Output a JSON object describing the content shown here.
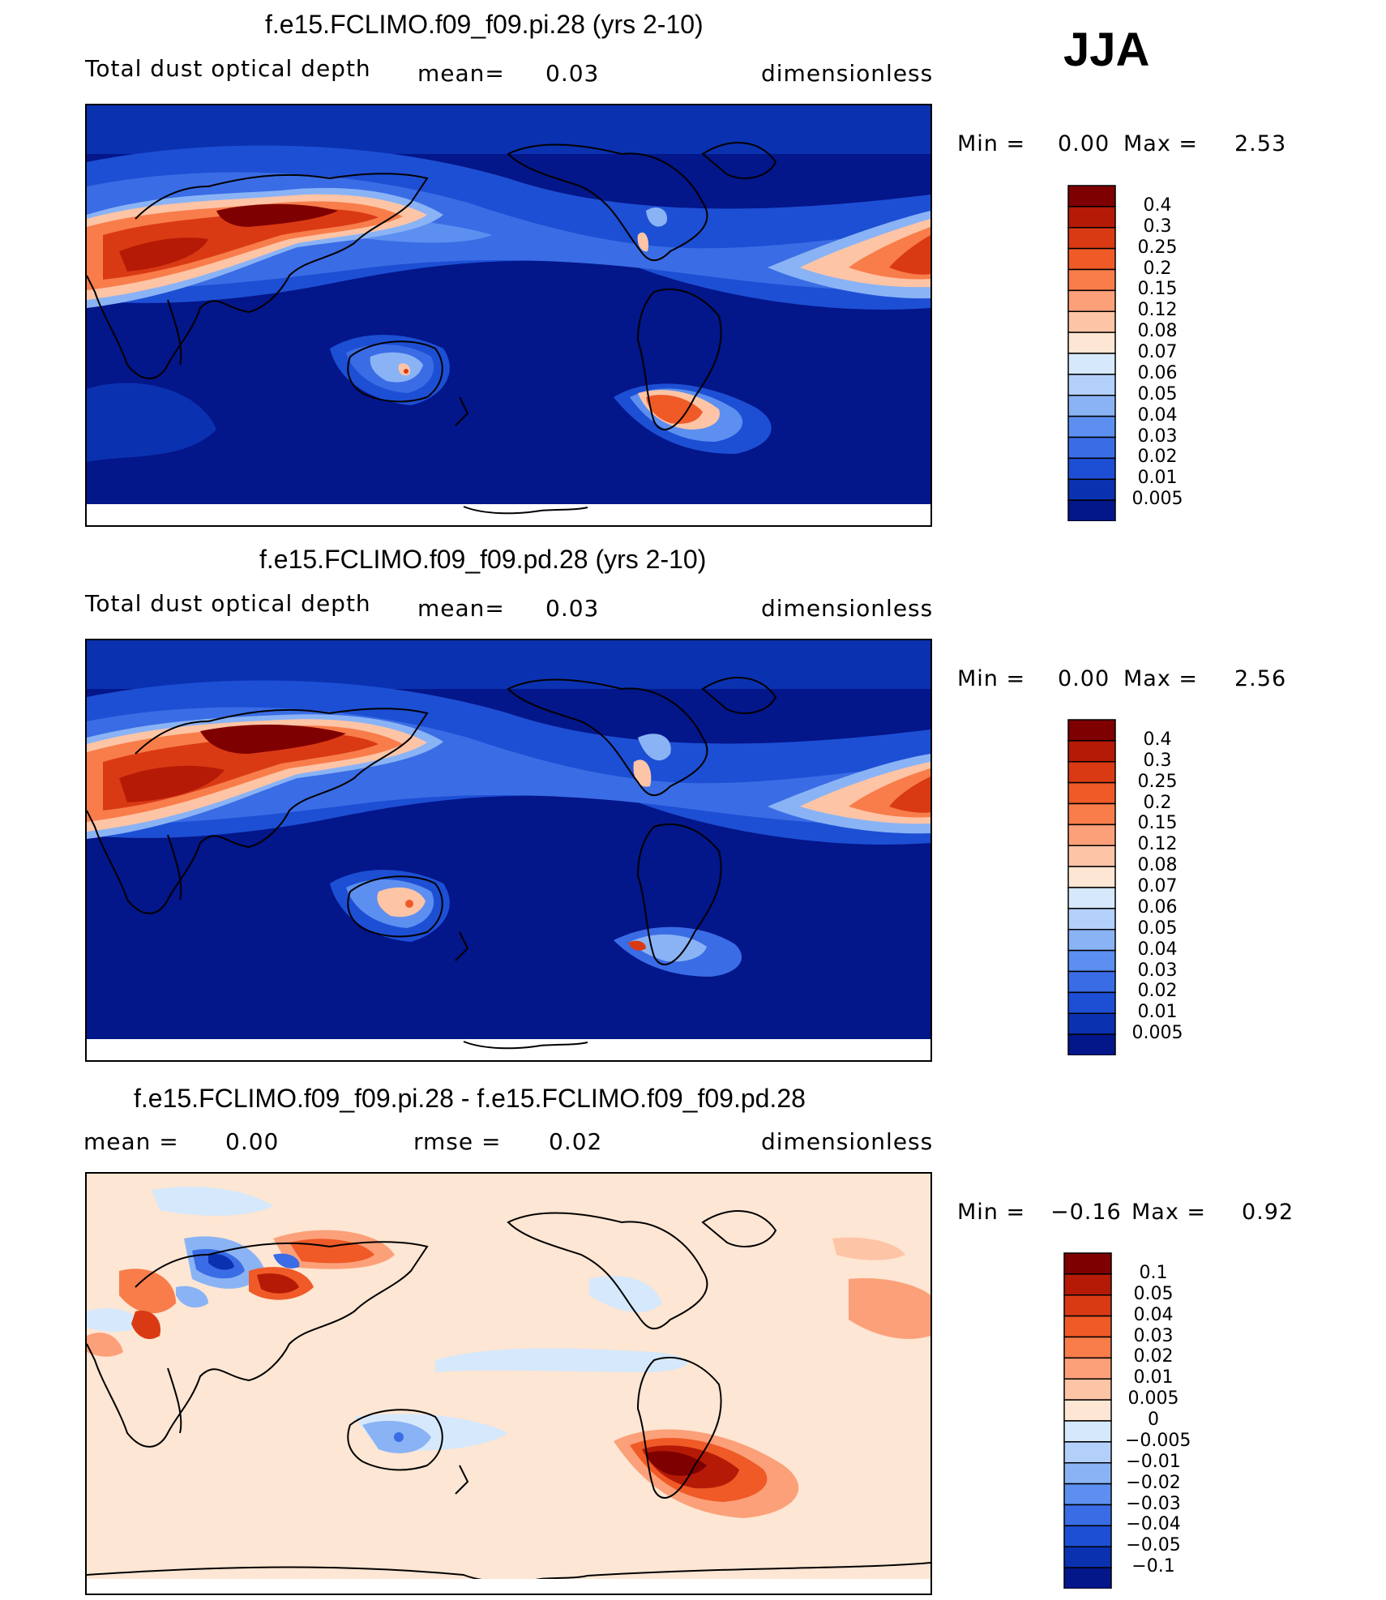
{
  "season": "JJA",
  "panels": [
    {
      "title": "f.e15.FCLIMO.f09_f09.pi.28 (yrs 2-10)",
      "variable": "Total dust optical depth",
      "left_stat_label": "mean=",
      "left_stat_value": "0.03",
      "units": "dimensionless",
      "min_label": "Min =",
      "min_value": "0.00",
      "max_label": "Max =",
      "max_value": "2.53"
    },
    {
      "title": "f.e15.FCLIMO.f09_f09.pd.28 (yrs 2-10)",
      "variable": "Total dust optical depth",
      "left_stat_label": "mean=",
      "left_stat_value": "0.03",
      "units": "dimensionless",
      "min_label": "Min =",
      "min_value": "0.00",
      "max_label": "Max =",
      "max_value": "2.56"
    },
    {
      "title": "f.e15.FCLIMO.f09_f09.pi.28 - f.e15.FCLIMO.f09_f09.pd.28",
      "left_stat_label": "mean =",
      "left_stat_value": "0.00",
      "mid_stat_label": "rmse =",
      "mid_stat_value": "0.02",
      "units": "dimensionless",
      "min_label": "Min =",
      "min_value": "−0.16",
      "max_label": "Max =",
      "max_value": "0.92"
    }
  ],
  "chart_data": [
    {
      "type": "heatmap",
      "title": "f.e15.FCLIMO.f09_f09.pi.28 (yrs 2-10)",
      "subtitle": "Total dust optical depth",
      "units": "dimensionless",
      "mean": 0.03,
      "min": 0.0,
      "max": 2.53,
      "colorbar_levels": [
        "0.4",
        "0.3",
        "0.25",
        "0.2",
        "0.15",
        "0.12",
        "0.08",
        "0.07",
        "0.06",
        "0.05",
        "0.04",
        "0.03",
        "0.02",
        "0.01",
        "0.005"
      ],
      "colorbar_colors": [
        "#7f0000",
        "#b51a06",
        "#d93a14",
        "#ef5a27",
        "#f87d4a",
        "#fca079",
        "#fdc4a6",
        "#fde6d3",
        "#d6e8fb",
        "#b3d0fa",
        "#8ab3f5",
        "#5c8ff0",
        "#3a6ce5",
        "#1d4fd4",
        "#0a31b0",
        "#03168a"
      ]
    },
    {
      "type": "heatmap",
      "title": "f.e15.FCLIMO.f09_f09.pd.28 (yrs 2-10)",
      "subtitle": "Total dust optical depth",
      "units": "dimensionless",
      "mean": 0.03,
      "min": 0.0,
      "max": 2.56,
      "colorbar_levels": [
        "0.4",
        "0.3",
        "0.25",
        "0.2",
        "0.15",
        "0.12",
        "0.08",
        "0.07",
        "0.06",
        "0.05",
        "0.04",
        "0.03",
        "0.02",
        "0.01",
        "0.005"
      ],
      "colorbar_colors": [
        "#7f0000",
        "#b51a06",
        "#d93a14",
        "#ef5a27",
        "#f87d4a",
        "#fca079",
        "#fdc4a6",
        "#fde6d3",
        "#d6e8fb",
        "#b3d0fa",
        "#8ab3f5",
        "#5c8ff0",
        "#3a6ce5",
        "#1d4fd4",
        "#0a31b0",
        "#03168a"
      ]
    },
    {
      "type": "heatmap",
      "title": "f.e15.FCLIMO.f09_f09.pi.28 - f.e15.FCLIMO.f09_f09.pd.28",
      "units": "dimensionless",
      "mean": 0.0,
      "rmse": 0.02,
      "min": -0.16,
      "max": 0.92,
      "colorbar_levels": [
        "0.1",
        "0.05",
        "0.04",
        "0.03",
        "0.02",
        "0.01",
        "0.005",
        "0",
        "−0.005",
        "−0.01",
        "−0.02",
        "−0.03",
        "−0.04",
        "−0.05",
        "−0.1"
      ],
      "colorbar_colors": [
        "#7f0000",
        "#b51a06",
        "#d93a14",
        "#ef5a27",
        "#f87d4a",
        "#fca079",
        "#fdc4a6",
        "#fde6d3",
        "#d6e8fb",
        "#b3d0fa",
        "#8ab3f5",
        "#5c8ff0",
        "#3a6ce5",
        "#1d4fd4",
        "#0a31b0",
        "#03168a"
      ]
    }
  ]
}
